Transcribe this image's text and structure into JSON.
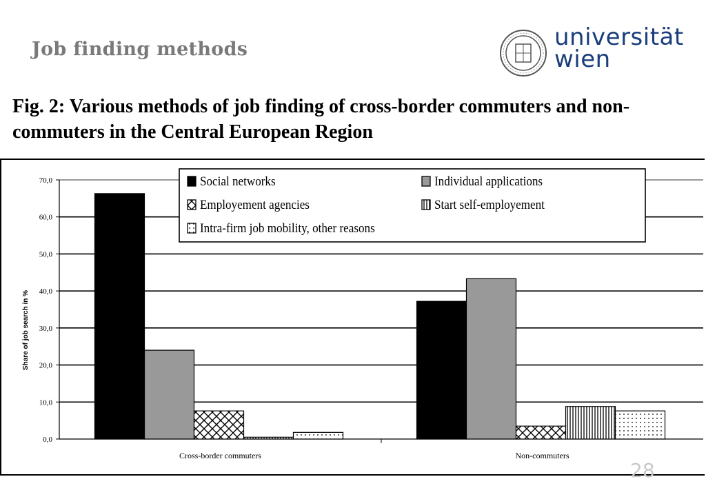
{
  "slide": {
    "title": "Job finding methods",
    "logo_text_line1": "universität",
    "logo_text_line2": "wien",
    "figure_title": "Fig. 2: Various methods of job finding of cross-border commuters and non-commuters in the Central European Region",
    "page_number": "28"
  },
  "chart_data": {
    "type": "bar",
    "title": "",
    "xlabel": "",
    "ylabel": "Share of job search in %",
    "ylim": [
      0,
      70
    ],
    "yticks": [
      "0,0",
      "10,0",
      "20,0",
      "30,0",
      "40,0",
      "50,0",
      "60,0",
      "70,0"
    ],
    "categories": [
      "Cross-border commuters",
      "Non-commuters"
    ],
    "series": [
      {
        "name": "Social networks",
        "values": [
          66.3,
          37.2
        ],
        "pattern": "solid-black"
      },
      {
        "name": "Individual applications",
        "values": [
          24.0,
          43.3
        ],
        "pattern": "solid-gray"
      },
      {
        "name": "Employement agencies",
        "values": [
          7.6,
          3.5
        ],
        "pattern": "crosshatch"
      },
      {
        "name": "Start self-employement",
        "values": [
          0.5,
          8.8
        ],
        "pattern": "vertical-lines"
      },
      {
        "name": "Intra-firm job mobility, other reasons",
        "values": [
          1.8,
          7.6
        ],
        "pattern": "dots"
      }
    ],
    "grid": true,
    "legend_position": "top"
  }
}
